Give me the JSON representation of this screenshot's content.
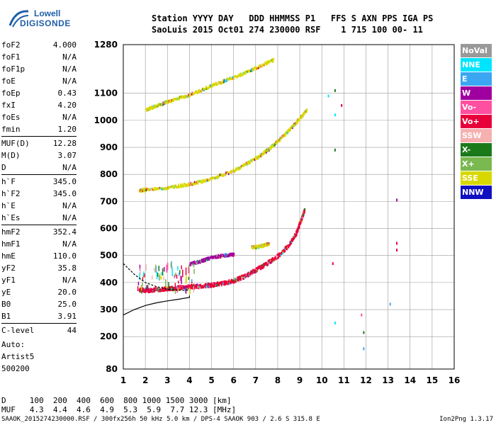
{
  "logo": {
    "line1": "Lowell",
    "line2": "DIGISONDE"
  },
  "header": {
    "line1": "Station YYYY DAY   DDD HHMMSS P1   FFS S AXN PPS IGA PS",
    "line2": "SaoLuis 2015 Oct01 274 230000 RSF    1 715 100 00- 11"
  },
  "params": [
    {
      "k": "foF2",
      "v": "4.000"
    },
    {
      "k": "foF1",
      "v": "N/A"
    },
    {
      "k": "foF1p",
      "v": "N/A"
    },
    {
      "k": "foE",
      "v": "N/A"
    },
    {
      "k": "foEp",
      "v": "0.43"
    },
    {
      "k": "fxI",
      "v": "4.20"
    },
    {
      "k": "foEs",
      "v": "N/A"
    },
    {
      "k": "fmin",
      "v": "1.20"
    },
    {
      "k": "MUF(D)",
      "v": "12.28",
      "div": true
    },
    {
      "k": "M(D)",
      "v": "3.07"
    },
    {
      "k": "D",
      "v": "N/A"
    },
    {
      "k": "h`F",
      "v": "345.0",
      "div": true
    },
    {
      "k": "h`F2",
      "v": "345.0"
    },
    {
      "k": "h`E",
      "v": "N/A"
    },
    {
      "k": "h`Es",
      "v": "N/A"
    },
    {
      "k": "hmF2",
      "v": "352.4",
      "div": true
    },
    {
      "k": "hmF1",
      "v": "N/A"
    },
    {
      "k": "hmE",
      "v": "110.0"
    },
    {
      "k": "yF2",
      "v": "35.8"
    },
    {
      "k": "yF1",
      "v": "N/A"
    },
    {
      "k": "yE",
      "v": "20.0"
    },
    {
      "k": "B0",
      "v": "25.0"
    },
    {
      "k": "B1",
      "v": "3.91"
    },
    {
      "k": "C-level",
      "v": "44",
      "div": true
    }
  ],
  "auto": {
    "l1": "Auto:",
    "l2": "Artist5",
    "l3": "500200"
  },
  "legend": [
    {
      "label": "NoVal",
      "bg": "#999999",
      "fg": "#ffffff"
    },
    {
      "label": "NNE",
      "bg": "#00e5ff",
      "fg": "#ffffff"
    },
    {
      "label": "E",
      "bg": "#3ba6f2",
      "fg": "#ffffff"
    },
    {
      "label": "W",
      "bg": "#a000a0",
      "fg": "#ffffff"
    },
    {
      "label": "Vo-",
      "bg": "#ff4fa0",
      "fg": "#ffffff"
    },
    {
      "label": "Vo+",
      "bg": "#e8003a",
      "fg": "#ffffff"
    },
    {
      "label": "SSW",
      "bg": "#f6b0b0",
      "fg": "#ffffff"
    },
    {
      "label": "X-",
      "bg": "#1a7a1a",
      "fg": "#ffffff"
    },
    {
      "label": "X+",
      "bg": "#7ab850",
      "fg": "#ffffff"
    },
    {
      "label": "SSE",
      "bg": "#d8d800",
      "fg": "#ffffff"
    },
    {
      "label": "NNW",
      "bg": "#1010c0",
      "fg": "#ffffff"
    }
  ],
  "footer": {
    "line1": "D     100  200  400  600  800 1000 1500 3000 [km]",
    "line2": "MUF   4.3  4.4  4.6  4.9  5.3  5.9  7.7 12.3 [MHz]",
    "line3": "SAAOK_2015274230000.RSF / 300fx256h 50 kHz 5.0 km / DPS-4 SAAOK 903 / 2.6 S 315.8 E",
    "version": "Ion2Png 1.3.17"
  },
  "chart_data": {
    "type": "scatter",
    "title": "",
    "xlabel": "",
    "ylabel": "",
    "xlim": [
      1,
      16
    ],
    "ylim": [
      80,
      1280
    ],
    "x_ticks": [
      1,
      2,
      3,
      4,
      5,
      6,
      7,
      8,
      9,
      10,
      11,
      12,
      13,
      14,
      15,
      16
    ],
    "y_ticks": [
      80,
      200,
      300,
      400,
      500,
      600,
      700,
      800,
      900,
      1000,
      1100,
      1280
    ],
    "grid": true,
    "echo_traces": [
      {
        "name": "F2 trace",
        "color": "#e8003a",
        "points": [
          [
            1.7,
            375
          ],
          [
            2.0,
            372
          ],
          [
            2.5,
            375
          ],
          [
            3.0,
            378
          ],
          [
            3.5,
            382
          ],
          [
            4.0,
            385
          ],
          [
            4.5,
            388
          ],
          [
            5.0,
            392
          ],
          [
            5.5,
            398
          ],
          [
            6.0,
            408
          ],
          [
            6.5,
            425
          ],
          [
            7.0,
            448
          ],
          [
            7.5,
            472
          ],
          [
            8.0,
            500
          ],
          [
            8.5,
            540
          ],
          [
            8.8,
            580
          ],
          [
            9.0,
            625
          ],
          [
            9.2,
            670
          ]
        ]
      },
      {
        "name": "2F trace",
        "color": "#d8d800",
        "points": [
          [
            1.7,
            740
          ],
          [
            2.0,
            745
          ],
          [
            3.0,
            752
          ],
          [
            4.0,
            765
          ],
          [
            5.0,
            785
          ],
          [
            6.0,
            815
          ],
          [
            7.0,
            860
          ],
          [
            7.5,
            890
          ],
          [
            8.0,
            925
          ],
          [
            8.5,
            965
          ],
          [
            9.0,
            1010
          ],
          [
            9.3,
            1040
          ]
        ]
      },
      {
        "name": "3F trace",
        "color": "#d8d800",
        "points": [
          [
            2.0,
            1040
          ],
          [
            2.5,
            1055
          ],
          [
            3.0,
            1070
          ],
          [
            4.0,
            1095
          ],
          [
            5.0,
            1130
          ],
          [
            6.0,
            1160
          ],
          [
            7.0,
            1195
          ],
          [
            7.8,
            1225
          ]
        ]
      },
      {
        "name": "Es echoes",
        "color": "#a000a0",
        "points": [
          [
            4.0,
            470
          ],
          [
            4.5,
            480
          ],
          [
            5.0,
            495
          ],
          [
            5.5,
            500
          ],
          [
            6.0,
            505
          ]
        ]
      },
      {
        "name": "SSE patch",
        "color": "#d8d800",
        "points": [
          [
            6.8,
            530
          ],
          [
            7.2,
            535
          ],
          [
            7.6,
            545
          ]
        ]
      }
    ],
    "profile": {
      "name": "Profile",
      "color": "#000000",
      "points": [
        [
          1.0,
          280
        ],
        [
          1.5,
          300
        ],
        [
          2.0,
          315
        ],
        [
          2.5,
          325
        ],
        [
          3.0,
          332
        ],
        [
          3.5,
          338
        ],
        [
          4.0,
          345
        ],
        [
          4.0,
          352
        ]
      ]
    },
    "profile_upper": {
      "name": "Profile extrapolation",
      "color": "#000000",
      "points": [
        [
          1.0,
          470
        ],
        [
          1.5,
          430
        ],
        [
          2.0,
          400
        ],
        [
          2.5,
          385
        ],
        [
          3.0,
          375
        ],
        [
          3.5,
          372
        ],
        [
          4.0,
          372
        ]
      ]
    },
    "scattered": [
      {
        "x": 10.3,
        "y": 1090,
        "color": "#00e5ff"
      },
      {
        "x": 10.6,
        "y": 1110,
        "color": "#1a7a1a"
      },
      {
        "x": 10.6,
        "y": 1020,
        "color": "#00e5ff"
      },
      {
        "x": 10.9,
        "y": 1055,
        "color": "#e8003a"
      },
      {
        "x": 10.6,
        "y": 890,
        "color": "#1a7a1a"
      },
      {
        "x": 10.5,
        "y": 470,
        "color": "#e8003a"
      },
      {
        "x": 10.6,
        "y": 250,
        "color": "#00e5ff"
      },
      {
        "x": 11.8,
        "y": 280,
        "color": "#ff4fa0"
      },
      {
        "x": 11.9,
        "y": 215,
        "color": "#1a7a1a"
      },
      {
        "x": 11.9,
        "y": 155,
        "color": "#3ba6f2"
      },
      {
        "x": 13.1,
        "y": 320,
        "color": "#3ba6f2"
      },
      {
        "x": 13.4,
        "y": 520,
        "color": "#e8003a"
      },
      {
        "x": 13.4,
        "y": 545,
        "color": "#e8003a"
      },
      {
        "x": 13.4,
        "y": 705,
        "color": "#a000a0"
      }
    ]
  }
}
